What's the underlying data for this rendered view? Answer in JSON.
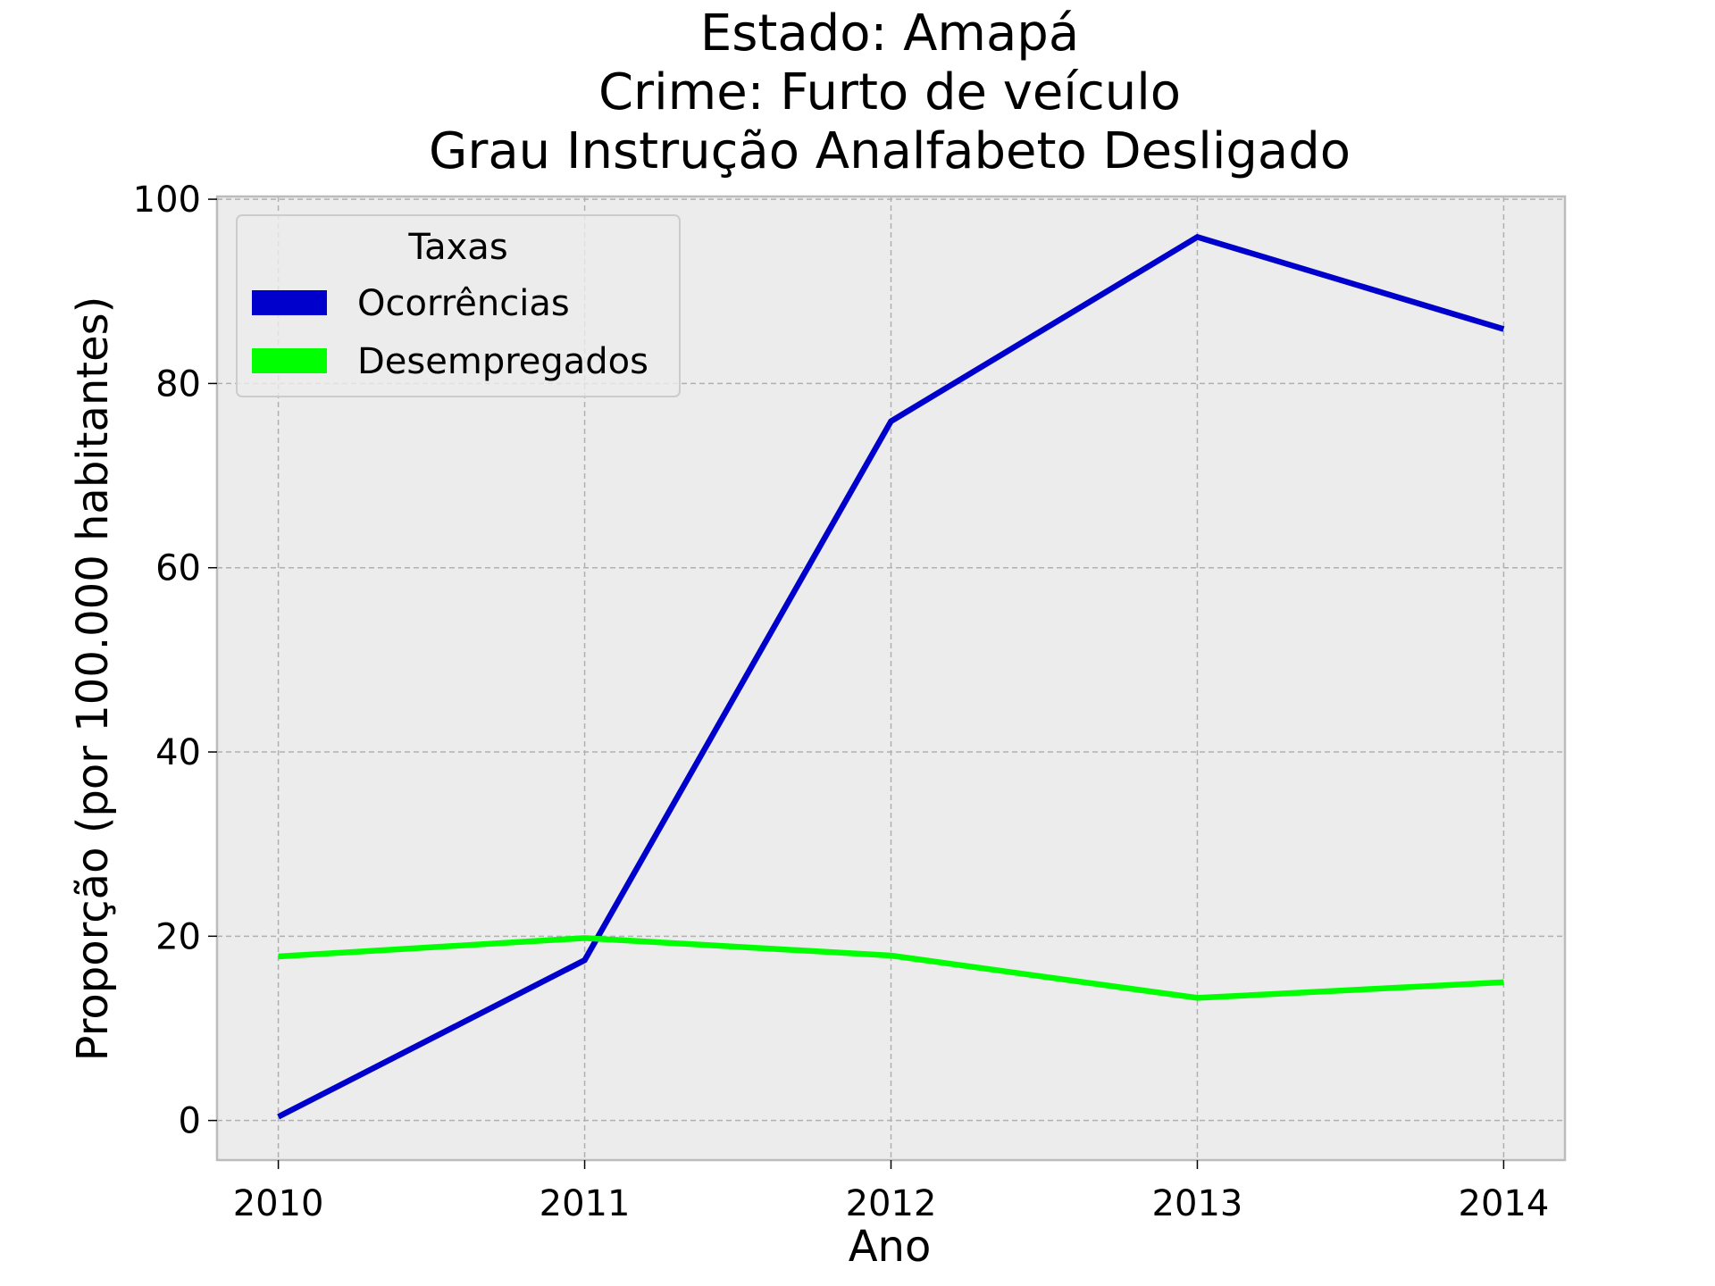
{
  "chart_data": {
    "type": "line",
    "title_lines": [
      "Estado: Amapá",
      "Crime: Furto de veículo",
      "Grau Instrução  Analfabeto   Desligado"
    ],
    "xlabel": "Ano",
    "ylabel": "Proporção (por 100.000 habitantes)",
    "x": [
      2010,
      2011,
      2012,
      2013,
      2014
    ],
    "x_tick_labels": [
      "2010",
      "2011",
      "2012",
      "2013",
      "2014"
    ],
    "y_ticks": [
      0,
      20,
      40,
      60,
      80,
      100
    ],
    "y_tick_labels": [
      "0",
      "20",
      "40",
      "60",
      "80",
      "100"
    ],
    "xlim": [
      2009.8,
      2014.2
    ],
    "ylim": [
      -4.3,
      100.3
    ],
    "grid": true,
    "legend": {
      "title": "Taxas",
      "placement": "top-left"
    },
    "series": [
      {
        "name": "Ocorrências",
        "color": "#0000cc",
        "values": [
          0.4,
          17.4,
          75.9,
          95.9,
          85.9
        ]
      },
      {
        "name": "Desempregados",
        "color": "#00ff00",
        "values": [
          17.8,
          19.8,
          17.9,
          13.3,
          15.0
        ]
      }
    ]
  },
  "colors": {
    "plot_background": "#ececec",
    "grid": "#b0b0b0",
    "axes_edge": "#bcbcbc"
  }
}
